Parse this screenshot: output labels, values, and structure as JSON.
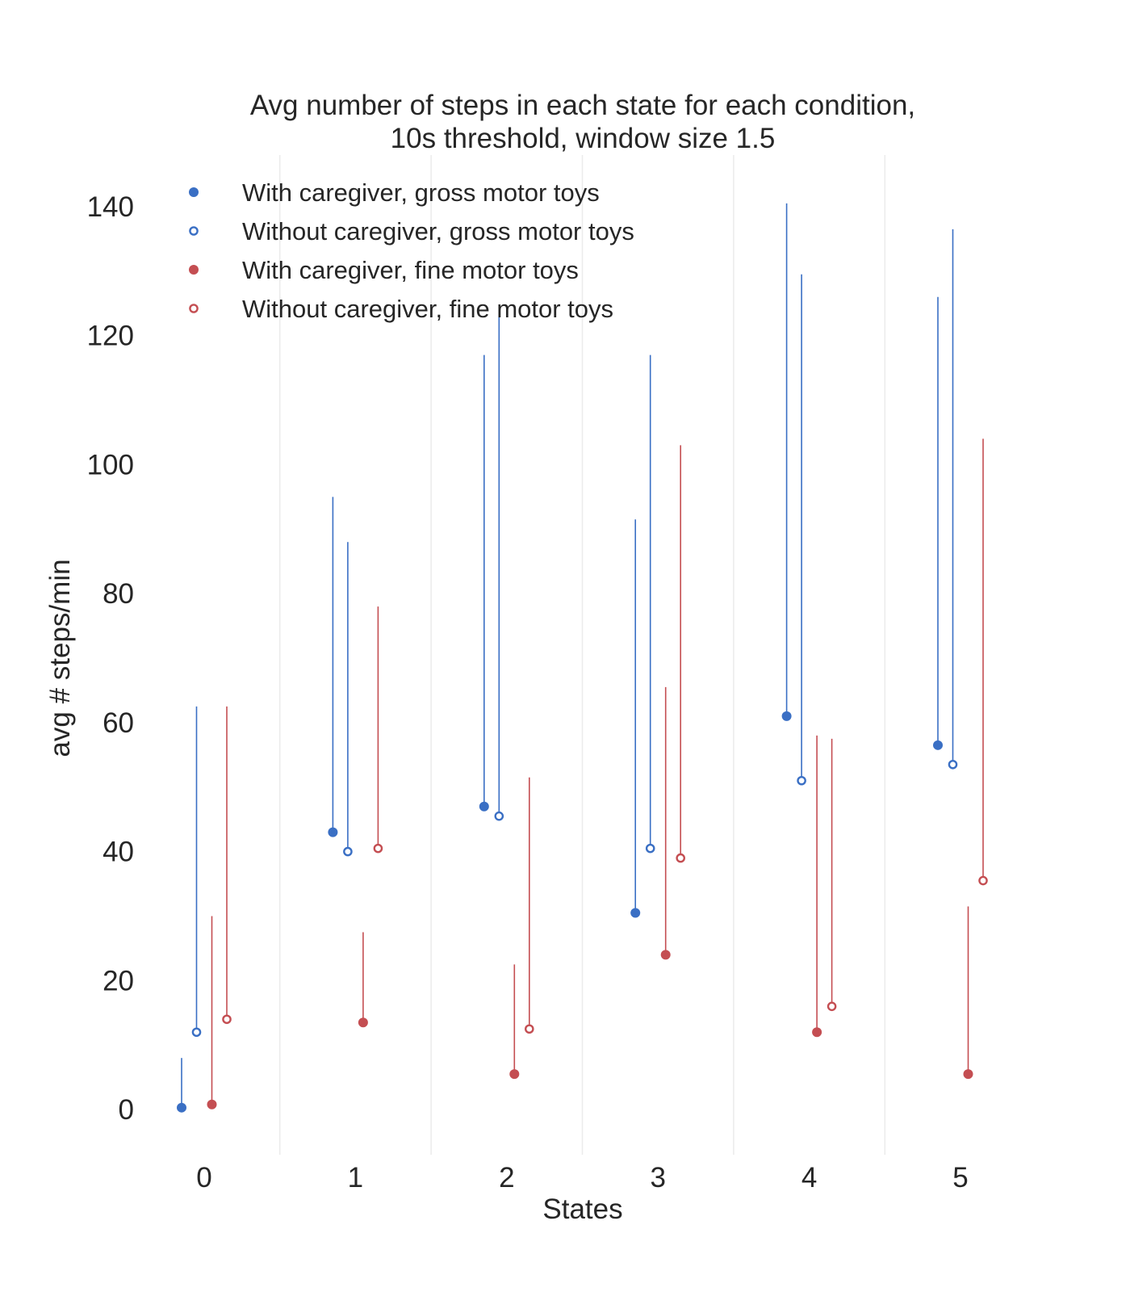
{
  "chart_data": {
    "type": "scatter",
    "title_lines": [
      "Avg number of steps in each state for each condition,",
      "10s threshold, window size 1.5"
    ],
    "xlabel": "States",
    "ylabel": "avg # steps/min",
    "categories": [
      "0",
      "1",
      "2",
      "3",
      "4",
      "5"
    ],
    "ylim": [
      -7,
      148
    ],
    "yticks": [
      0,
      20,
      40,
      60,
      80,
      100,
      120,
      140
    ],
    "grid": "vertical lines between states",
    "legend_position": "top-left",
    "series": [
      {
        "name": "With caregiver, gross motor toys",
        "color": "#3a6fc4",
        "marker": "filled",
        "values": [
          0.3,
          43.0,
          47.0,
          30.5,
          61.0,
          56.5
        ],
        "upper": [
          8.0,
          95.0,
          117.0,
          91.5,
          140.5,
          126.0
        ]
      },
      {
        "name": "Without caregiver, gross motor toys",
        "color": "#3a6fc4",
        "marker": "hollow",
        "values": [
          12.0,
          40.0,
          45.5,
          40.5,
          51.0,
          53.5
        ],
        "upper": [
          62.5,
          88.0,
          124.0,
          117.0,
          129.5,
          136.5
        ]
      },
      {
        "name": "With caregiver, fine motor toys",
        "color": "#c44e52",
        "marker": "filled",
        "values": [
          0.8,
          13.5,
          5.5,
          24.0,
          12.0,
          5.5
        ],
        "upper": [
          30.0,
          27.5,
          22.5,
          65.5,
          58.0,
          31.5
        ]
      },
      {
        "name": "Without caregiver, fine motor toys",
        "color": "#c44e52",
        "marker": "hollow",
        "values": [
          14.0,
          40.5,
          12.5,
          39.0,
          16.0,
          35.5
        ],
        "upper": [
          62.5,
          78.0,
          51.5,
          103.0,
          57.5,
          104.0
        ]
      }
    ]
  }
}
